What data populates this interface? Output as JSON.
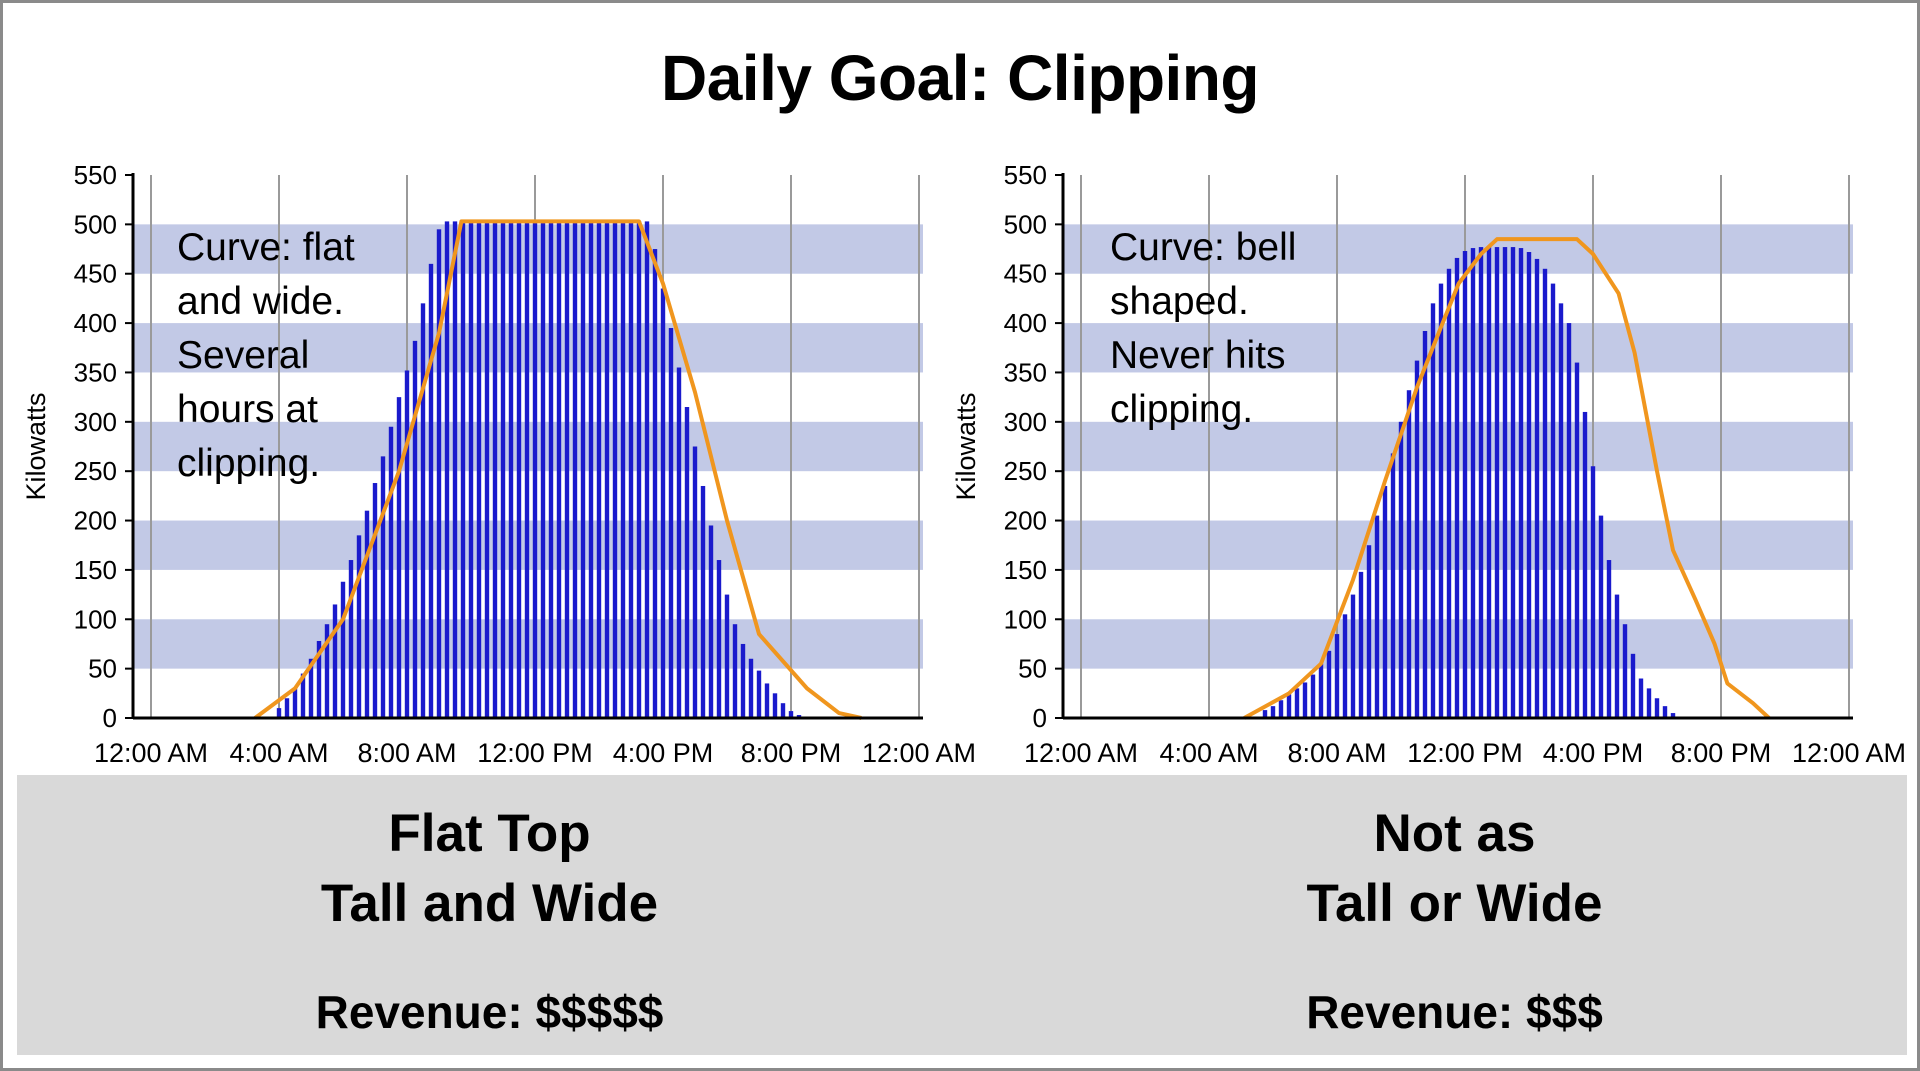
{
  "page": {
    "title": "Daily Goal: Clipping"
  },
  "annotations": {
    "left": "Curve: flat\nand wide.\nSeveral\nhours at\nclipping.",
    "right": "Curve: bell\nshaped.\nNever hits\nclipping."
  },
  "panels": {
    "left": {
      "heading_line1": "Flat Top",
      "heading_line2": "Tall and Wide",
      "revenue": "Revenue: $$$$$"
    },
    "right": {
      "heading_line1": "Not as",
      "heading_line2": "Tall or Wide",
      "revenue": "Revenue: $$$"
    }
  },
  "colors": {
    "bar": "#1a1acc",
    "curve": "#f0961e",
    "band": "#c2c9e6",
    "grid": "#9a9a9a"
  },
  "chart_data": [
    {
      "type": "bar",
      "title": "",
      "xlabel": "",
      "ylabel": "Kilowatts",
      "ylim": [
        0,
        550
      ],
      "yticks": [
        0,
        50,
        100,
        150,
        200,
        250,
        300,
        350,
        400,
        450,
        500,
        550
      ],
      "xlim_hours": [
        0,
        24
      ],
      "xticks": [
        "12:00 AM",
        "4:00 AM",
        "8:00 AM",
        "12:00 PM",
        "4:00 PM",
        "8:00 PM",
        "12:00 AM"
      ],
      "interval_hours": 0.25,
      "start_hour": 3.75,
      "values": [
        0,
        10,
        20,
        30,
        45,
        60,
        78,
        95,
        115,
        138,
        160,
        185,
        210,
        238,
        265,
        295,
        325,
        352,
        382,
        420,
        460,
        495,
        503,
        503,
        503,
        503,
        503,
        503,
        503,
        503,
        503,
        503,
        503,
        503,
        503,
        503,
        503,
        503,
        503,
        503,
        503,
        503,
        503,
        503,
        503,
        503,
        503,
        503,
        475,
        435,
        395,
        355,
        315,
        275,
        235,
        195,
        160,
        125,
        95,
        75,
        60,
        48,
        35,
        25,
        15,
        7,
        3,
        0
      ],
      "curve": {
        "name": "",
        "points": [
          [
            3.25,
            0
          ],
          [
            4.5,
            30
          ],
          [
            6.0,
            100
          ],
          [
            7.75,
            250
          ],
          [
            9.0,
            390
          ],
          [
            9.7,
            503
          ],
          [
            15.25,
            503
          ],
          [
            16.0,
            440
          ],
          [
            17.0,
            330
          ],
          [
            18.0,
            200
          ],
          [
            19.0,
            85
          ],
          [
            20.5,
            30
          ],
          [
            21.5,
            5
          ],
          [
            22.2,
            0
          ]
        ]
      },
      "clipping_kw": 503
    },
    {
      "type": "bar",
      "title": "",
      "xlabel": "",
      "ylabel": "Kilowatts",
      "ylim": [
        0,
        550
      ],
      "yticks": [
        0,
        50,
        100,
        150,
        200,
        250,
        300,
        350,
        400,
        450,
        500,
        550
      ],
      "xlim_hours": [
        0,
        24
      ],
      "xticks": [
        "12:00 AM",
        "4:00 AM",
        "8:00 AM",
        "12:00 PM",
        "4:00 PM",
        "8:00 PM",
        "12:00 AM"
      ],
      "interval_hours": 0.25,
      "start_hour": 5.5,
      "values": [
        0,
        8,
        12,
        18,
        24,
        30,
        36,
        44,
        55,
        68,
        85,
        105,
        125,
        148,
        175,
        205,
        235,
        268,
        300,
        332,
        362,
        392,
        420,
        440,
        455,
        466,
        473,
        476,
        477,
        477,
        477,
        477,
        477,
        476,
        472,
        465,
        455,
        440,
        420,
        400,
        360,
        310,
        255,
        205,
        160,
        125,
        95,
        65,
        40,
        30,
        20,
        12,
        5,
        0
      ],
      "curve": {
        "name": "",
        "points": [
          [
            5.1,
            0
          ],
          [
            6.5,
            25
          ],
          [
            7.5,
            55
          ],
          [
            8.5,
            140
          ],
          [
            9.5,
            240
          ],
          [
            10.5,
            335
          ],
          [
            11.3,
            400
          ],
          [
            11.8,
            440
          ],
          [
            12.5,
            470
          ],
          [
            13.0,
            485
          ],
          [
            15.5,
            485
          ],
          [
            16.0,
            470
          ],
          [
            16.8,
            430
          ],
          [
            17.3,
            370
          ],
          [
            18.0,
            250
          ],
          [
            18.5,
            170
          ],
          [
            19.2,
            120
          ],
          [
            19.8,
            75
          ],
          [
            20.2,
            35
          ],
          [
            21.0,
            15
          ],
          [
            21.5,
            0
          ]
        ]
      },
      "clipping_kw": 485
    }
  ]
}
